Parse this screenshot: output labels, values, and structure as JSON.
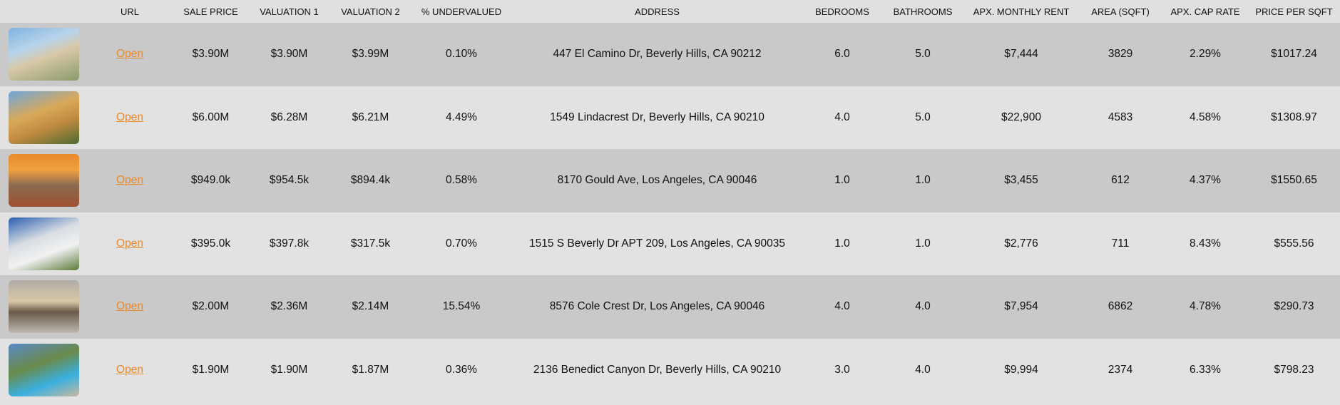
{
  "table": {
    "headers": [
      "URL",
      "SALE PRICE",
      "VALUATION 1",
      "VALUATION 2",
      "% UNDERVALUED",
      "ADDRESS",
      "BEDROOMS",
      "BATHROOMS",
      "APX. MONTHLY RENT",
      "AREA (SQFT)",
      "APX. CAP RATE",
      "PRICE PER SQFT"
    ],
    "rows": [
      [
        "Open",
        "$3.90M",
        "$3.90M",
        "$3.99M",
        "0.10%",
        "447 El Camino Dr, Beverly Hills, CA 90212",
        "6.0",
        "5.0",
        "$7,444",
        "3829",
        "2.29%",
        "$1017.24"
      ],
      [
        "Open",
        "$6.00M",
        "$6.28M",
        "$6.21M",
        "4.49%",
        "1549 Lindacrest Dr, Beverly Hills, CA 90210",
        "4.0",
        "5.0",
        "$22,900",
        "4583",
        "4.58%",
        "$1308.97"
      ],
      [
        "Open",
        "$949.0k",
        "$954.5k",
        "$894.4k",
        "0.58%",
        "8170 Gould Ave, Los Angeles, CA 90046",
        "1.0",
        "1.0",
        "$3,455",
        "612",
        "4.37%",
        "$1550.65"
      ],
      [
        "Open",
        "$395.0k",
        "$397.8k",
        "$317.5k",
        "0.70%",
        "1515 S Beverly Dr APT 209, Los Angeles, CA 90035",
        "1.0",
        "1.0",
        "$2,776",
        "711",
        "8.43%",
        "$555.56"
      ],
      [
        "Open",
        "$2.00M",
        "$2.36M",
        "$2.14M",
        "15.54%",
        "8576 Cole Crest Dr, Los Angeles, CA 90046",
        "4.0",
        "4.0",
        "$7,954",
        "6862",
        "4.78%",
        "$290.73"
      ],
      [
        "Open",
        "$1.90M",
        "$1.90M",
        "$1.87M",
        "0.36%",
        "2136 Benedict Canyon Dr, Beverly Hills, CA 90210",
        "3.0",
        "4.0",
        "$9,994",
        "2374",
        "6.33%",
        "$798.23"
      ]
    ]
  }
}
